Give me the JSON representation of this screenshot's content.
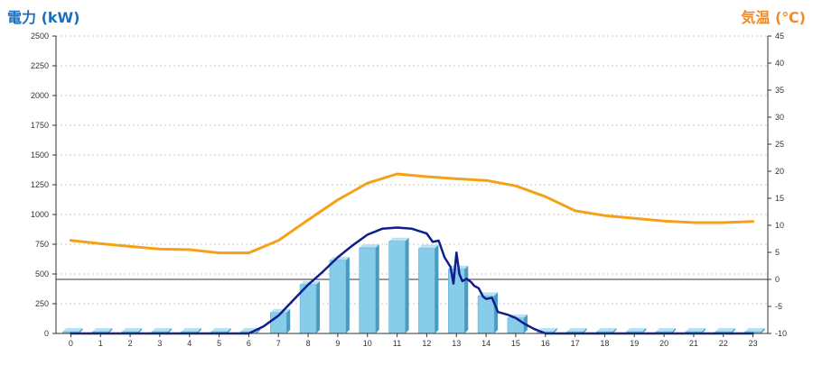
{
  "chart_data": {
    "type": "bar",
    "left_axis": {
      "title": "電力 (kW)",
      "ylim": [
        0,
        2500
      ],
      "ticks": [
        0,
        250,
        500,
        750,
        1000,
        1250,
        1500,
        1750,
        2000,
        2250,
        2500
      ],
      "color": "#1f6fb8"
    },
    "right_axis": {
      "title": "気温 (℃)",
      "ylim": [
        -10,
        45
      ],
      "ticks": [
        -10,
        -5,
        0,
        5,
        10,
        15,
        20,
        25,
        30,
        35,
        40,
        45
      ],
      "color": "#f08a24"
    },
    "categories": [
      "0",
      "1",
      "2",
      "3",
      "4",
      "5",
      "6",
      "7",
      "8",
      "9",
      "10",
      "11",
      "12",
      "13",
      "14",
      "15",
      "16",
      "17",
      "18",
      "19",
      "20",
      "21",
      "22",
      "23"
    ],
    "grid": "horizontal dashed",
    "series": [
      {
        "type": "bar",
        "axis": "left",
        "color": "#87cdea",
        "values": [
          15,
          15,
          15,
          15,
          15,
          15,
          15,
          175,
          410,
          615,
          720,
          775,
          715,
          540,
          315,
          130,
          15,
          15,
          15,
          15,
          15,
          15,
          15,
          15
        ]
      },
      {
        "type": "line",
        "axis": "left",
        "color": "#0f1e8c",
        "x": [
          0,
          1,
          2,
          3,
          4,
          5,
          6,
          6.5,
          7,
          7.5,
          8,
          8.5,
          9,
          9.5,
          10,
          10.5,
          11,
          11.5,
          12,
          12.2,
          12.4,
          12.6,
          12.8,
          12.9,
          13.0,
          13.1,
          13.2,
          13.35,
          13.5,
          13.6,
          13.75,
          13.9,
          14.0,
          14.2,
          14.4,
          14.7,
          15.0,
          15.3,
          15.6,
          16,
          17,
          18,
          19,
          20,
          21,
          22,
          23
        ],
        "values": [
          0,
          0,
          0,
          0,
          0,
          0,
          0,
          60,
          150,
          280,
          410,
          520,
          640,
          740,
          830,
          880,
          890,
          880,
          840,
          770,
          780,
          640,
          560,
          420,
          680,
          500,
          440,
          460,
          430,
          400,
          380,
          310,
          290,
          300,
          180,
          160,
          130,
          80,
          40,
          0,
          0,
          0,
          0,
          0,
          0,
          0,
          0
        ]
      },
      {
        "type": "line",
        "axis": "right",
        "color": "#f5a117",
        "x": [
          0,
          1,
          2,
          3,
          4,
          5,
          6,
          7,
          8,
          9,
          10,
          11,
          12,
          13,
          14,
          15,
          16,
          17,
          18,
          19,
          20,
          21,
          22,
          23
        ],
        "values": [
          7.2,
          6.6,
          6.1,
          5.6,
          5.5,
          4.9,
          4.9,
          7.2,
          11.0,
          14.7,
          17.8,
          19.5,
          19.0,
          18.6,
          18.3,
          17.3,
          15.3,
          12.7,
          11.8,
          11.3,
          10.8,
          10.5,
          10.5,
          10.7
        ]
      }
    ]
  }
}
